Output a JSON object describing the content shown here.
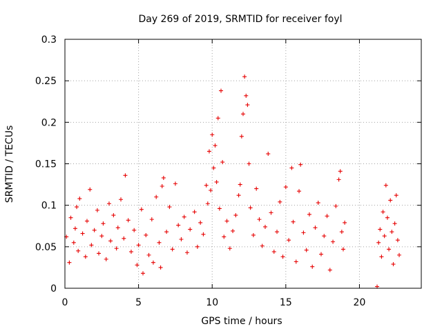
{
  "chart_data": {
    "type": "scatter",
    "title": "Day 269 of 2019, SRMTID for receiver foyl",
    "xlabel": "GPS time / hours",
    "ylabel": "SRMTID / TECUs",
    "xlim": [
      0,
      24.2
    ],
    "ylim": [
      0,
      0.3
    ],
    "x_ticks": [
      0,
      5,
      10,
      15,
      20
    ],
    "x_tick_labels": [
      "0",
      "5",
      "10",
      "15",
      "20"
    ],
    "y_ticks": [
      0,
      0.05,
      0.1,
      0.15,
      0.2,
      0.25,
      0.3
    ],
    "y_tick_labels": [
      "0",
      "0.05",
      "0.1",
      "0.15",
      "0.2",
      "0.25",
      "0.3"
    ],
    "grid": true,
    "marker": "plus",
    "color": "#e60000",
    "series": [
      {
        "points": [
          [
            0.1,
            0.062
          ],
          [
            0.3,
            0.031
          ],
          [
            0.4,
            0.085
          ],
          [
            0.6,
            0.055
          ],
          [
            0.7,
            0.072
          ],
          [
            0.8,
            0.098
          ],
          [
            0.9,
            0.045
          ],
          [
            1.0,
            0.108
          ],
          [
            1.2,
            0.066
          ],
          [
            1.4,
            0.038
          ],
          [
            1.5,
            0.081
          ],
          [
            1.7,
            0.119
          ],
          [
            1.8,
            0.052
          ],
          [
            2.0,
            0.07
          ],
          [
            2.2,
            0.094
          ],
          [
            2.3,
            0.042
          ],
          [
            2.5,
            0.063
          ],
          [
            2.6,
            0.078
          ],
          [
            2.8,
            0.035
          ],
          [
            3.0,
            0.102
          ],
          [
            3.1,
            0.057
          ],
          [
            3.3,
            0.088
          ],
          [
            3.5,
            0.048
          ],
          [
            3.6,
            0.073
          ],
          [
            3.8,
            0.107
          ],
          [
            4.0,
            0.06
          ],
          [
            4.1,
            0.136
          ],
          [
            4.3,
            0.082
          ],
          [
            4.5,
            0.044
          ],
          [
            4.7,
            0.07
          ],
          [
            4.9,
            0.028
          ],
          [
            5.0,
            0.052
          ],
          [
            5.2,
            0.095
          ],
          [
            5.3,
            0.018
          ],
          [
            5.5,
            0.064
          ],
          [
            5.7,
            0.04
          ],
          [
            5.9,
            0.083
          ],
          [
            6.0,
            0.031
          ],
          [
            6.2,
            0.11
          ],
          [
            6.4,
            0.055
          ],
          [
            6.5,
            0.025
          ],
          [
            6.6,
            0.123
          ],
          [
            6.7,
            0.133
          ],
          [
            6.9,
            0.068
          ],
          [
            7.1,
            0.098
          ],
          [
            7.3,
            0.047
          ],
          [
            7.5,
            0.126
          ],
          [
            7.7,
            0.076
          ],
          [
            7.9,
            0.059
          ],
          [
            8.1,
            0.086
          ],
          [
            8.3,
            0.043
          ],
          [
            8.5,
            0.071
          ],
          [
            8.8,
            0.092
          ],
          [
            9.0,
            0.05
          ],
          [
            9.2,
            0.079
          ],
          [
            9.4,
            0.065
          ],
          [
            9.6,
            0.124
          ],
          [
            9.7,
            0.102
          ],
          [
            9.8,
            0.165
          ],
          [
            9.9,
            0.118
          ],
          [
            10.0,
            0.185
          ],
          [
            10.1,
            0.145
          ],
          [
            10.2,
            0.172
          ],
          [
            10.3,
            0.128
          ],
          [
            10.4,
            0.205
          ],
          [
            10.5,
            0.096
          ],
          [
            10.6,
            0.238
          ],
          [
            10.7,
            0.152
          ],
          [
            10.8,
            0.062
          ],
          [
            11.0,
            0.081
          ],
          [
            11.2,
            0.048
          ],
          [
            11.4,
            0.069
          ],
          [
            11.6,
            0.088
          ],
          [
            11.8,
            0.112
          ],
          [
            11.9,
            0.125
          ],
          [
            12.0,
            0.183
          ],
          [
            12.1,
            0.21
          ],
          [
            12.2,
            0.255
          ],
          [
            12.3,
            0.232
          ],
          [
            12.4,
            0.221
          ],
          [
            12.5,
            0.15
          ],
          [
            12.6,
            0.097
          ],
          [
            12.8,
            0.064
          ],
          [
            13.0,
            0.12
          ],
          [
            13.2,
            0.083
          ],
          [
            13.4,
            0.051
          ],
          [
            13.6,
            0.074
          ],
          [
            13.8,
            0.162
          ],
          [
            14.0,
            0.091
          ],
          [
            14.2,
            0.044
          ],
          [
            14.4,
            0.068
          ],
          [
            14.6,
            0.104
          ],
          [
            14.8,
            0.038
          ],
          [
            15.0,
            0.122
          ],
          [
            15.2,
            0.058
          ],
          [
            15.4,
            0.145
          ],
          [
            15.5,
            0.08
          ],
          [
            15.7,
            0.032
          ],
          [
            15.9,
            0.117
          ],
          [
            16.0,
            0.149
          ],
          [
            16.2,
            0.067
          ],
          [
            16.4,
            0.046
          ],
          [
            16.6,
            0.089
          ],
          [
            16.8,
            0.026
          ],
          [
            17.0,
            0.073
          ],
          [
            17.2,
            0.103
          ],
          [
            17.4,
            0.041
          ],
          [
            17.6,
            0.063
          ],
          [
            17.8,
            0.087
          ],
          [
            18.0,
            0.022
          ],
          [
            18.2,
            0.056
          ],
          [
            18.4,
            0.099
          ],
          [
            18.6,
            0.131
          ],
          [
            18.7,
            0.141
          ],
          [
            18.8,
            0.068
          ],
          [
            18.9,
            0.047
          ],
          [
            19.0,
            0.079
          ],
          [
            21.2,
            0.002
          ],
          [
            21.3,
            0.055
          ],
          [
            21.4,
            0.071
          ],
          [
            21.5,
            0.038
          ],
          [
            21.6,
            0.092
          ],
          [
            21.7,
            0.063
          ],
          [
            21.8,
            0.124
          ],
          [
            21.9,
            0.085
          ],
          [
            22.0,
            0.047
          ],
          [
            22.1,
            0.106
          ],
          [
            22.2,
            0.068
          ],
          [
            22.3,
            0.029
          ],
          [
            22.4,
            0.078
          ],
          [
            22.5,
            0.112
          ],
          [
            22.6,
            0.058
          ],
          [
            22.7,
            0.04
          ]
        ]
      }
    ]
  }
}
